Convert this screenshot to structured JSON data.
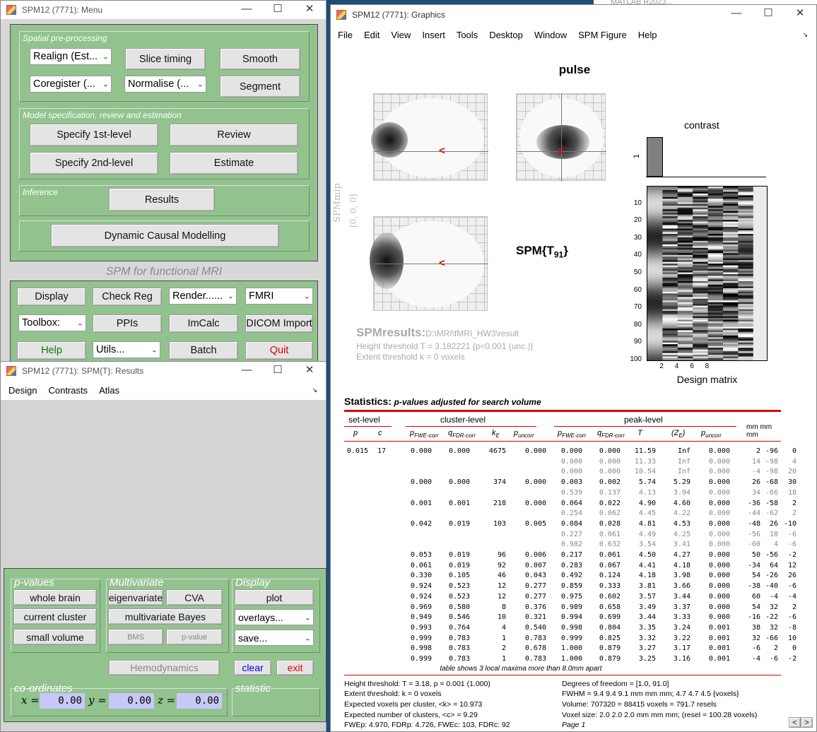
{
  "menu_window": {
    "title": "SPM12 (7771): Menu",
    "spatial_label": "Spatial pre-processing",
    "realign": "Realign (Est...",
    "slice_timing": "Slice timing",
    "smooth": "Smooth",
    "coregister": "Coregister (...",
    "normalise": "Normalise (...",
    "segment": "Segment",
    "model_label": "Model specification, review and estimation",
    "specify_1st": "Specify 1st-level",
    "review": "Review",
    "specify_2nd": "Specify 2nd-level",
    "estimate": "Estimate",
    "inference_label": "Inference",
    "results": "Results",
    "dcm": "Dynamic Causal Modelling",
    "banner": "SPM for functional MRI",
    "display": "Display",
    "check_reg": "Check Reg",
    "render": "Render......",
    "modality": "FMRI",
    "toolbox": "Toolbox:",
    "ppis": "PPIs",
    "imcalc": "ImCalc",
    "dicom_import": "DICOM Import",
    "help": "Help",
    "utils": "Utils...",
    "batch": "Batch",
    "quit": "Quit"
  },
  "behind_window": {
    "title": "MATLAB R2023..."
  },
  "results_window": {
    "title": "SPM12 (7771): SPM{T}: Results",
    "menus": [
      "Design",
      "Contrasts",
      "Atlas"
    ],
    "pvalues_label": "p-values",
    "whole_brain": "whole brain",
    "current_cluster": "current cluster",
    "small_volume": "small volume",
    "multivariate_label": "Multivariate",
    "eigenvariate": "eigenvariate",
    "cva": "CVA",
    "multivariate_bayes": "multivariate Bayes",
    "bms": "BMS",
    "p_value": "p-value",
    "display_label": "Display",
    "plot": "plot",
    "overlays": "overlays...",
    "save": "save...",
    "hemodynamics": "Hemodynamics",
    "clear": "clear",
    "exit": "exit",
    "coords_label": "co-ordinates",
    "statistic_label": "statistic",
    "x_label": "x =",
    "y_label": "y =",
    "z_label": "z =",
    "x": "0.00",
    "y": "0.00",
    "z": "0.00"
  },
  "graphics_window": {
    "title": "SPM12 (7771): Graphics",
    "menus": [
      "File",
      "Edit",
      "View",
      "Insert",
      "Tools",
      "Desktop",
      "Window",
      "SPM Figure",
      "Help"
    ],
    "contrast_name": "pulse",
    "mip_label": "SPMmip",
    "mip_coords": "[0, 0, 0]",
    "stat_label": "SPM{T",
    "stat_df": "91",
    "contrast_title": "contrast",
    "contrast_tick": "1",
    "design_label": "Design matrix",
    "design_yticks": [
      "10",
      "20",
      "30",
      "40",
      "50",
      "60",
      "70",
      "80",
      "90",
      "100"
    ],
    "design_xticks": [
      "2",
      "4",
      "6",
      "8"
    ],
    "spmresults_label": "SPMresults:",
    "spmresults_path": "D:\\MRI\\fMRI_HW3\\result",
    "height_threshold": "Height threshold T = 3.182221  {p<0.001 (unc.)}",
    "extent_threshold": "Extent threshold k = 0 voxels",
    "stats_title": "Statistics:",
    "stats_subtitle": "p-values adjusted for search volume",
    "hdr_set": "set-level",
    "hdr_cluster": "cluster-level",
    "hdr_peak": "peak-level",
    "hdr_mm": "mm mm mm",
    "hdr_cols": {
      "p": "p",
      "c": "c",
      "pfwe": "p",
      "pfwe_sub": "FWE-corr",
      "qfdr": "q",
      "qfdr_sub": "FDR-corr",
      "ke": "k",
      "ke_sub": "E",
      "punc": "p",
      "punc_sub": "uncorr",
      "pfwe2": "p",
      "pfwe2_sub": "FWE-corr",
      "qfdr2": "q",
      "qfdr2_sub": "FDR-corr",
      "t": "T",
      "ze": "(Z",
      "ze_sub": "E",
      "ze_close": ")",
      "punc2": "p",
      "punc2_sub": "uncorr"
    },
    "rows": [
      {
        "f": 0,
        "sp": "0.015",
        "sc": "17",
        "cp": "0.000",
        "cq": "0.000",
        "ck": "4675",
        "cu": "0.000",
        "pp": "0.000",
        "pq": "0.000",
        "t": "11.59",
        "z": "Inf",
        "pu": "0.000",
        "x": "2",
        "y": "-96",
        "zz": "0"
      },
      {
        "f": 1,
        "sp": "",
        "sc": "",
        "cp": "",
        "cq": "",
        "ck": "",
        "cu": "",
        "pp": "0.000",
        "pq": "0.000",
        "t": "11.33",
        "z": "Inf",
        "pu": "0.000",
        "x": "14",
        "y": "-98",
        "zz": "4"
      },
      {
        "f": 1,
        "sp": "",
        "sc": "",
        "cp": "",
        "cq": "",
        "ck": "",
        "cu": "",
        "pp": "0.000",
        "pq": "0.000",
        "t": "10.54",
        "z": "Inf",
        "pu": "0.000",
        "x": "-4",
        "y": "-98",
        "zz": "20"
      },
      {
        "f": 0,
        "sp": "",
        "sc": "",
        "cp": "0.000",
        "cq": "0.000",
        "ck": "374",
        "cu": "0.000",
        "pp": "0.003",
        "pq": "0.002",
        "t": "5.74",
        "z": "5.29",
        "pu": "0.000",
        "x": "26",
        "y": "-68",
        "zz": "30"
      },
      {
        "f": 1,
        "sp": "",
        "sc": "",
        "cp": "",
        "cq": "",
        "ck": "",
        "cu": "",
        "pp": "0.539",
        "pq": "0.137",
        "t": "4.13",
        "z": "3.94",
        "pu": "0.000",
        "x": "34",
        "y": "-66",
        "zz": "18"
      },
      {
        "f": 0,
        "sp": "",
        "sc": "",
        "cp": "0.001",
        "cq": "0.001",
        "ck": "218",
        "cu": "0.000",
        "pp": "0.064",
        "pq": "0.022",
        "t": "4.90",
        "z": "4.60",
        "pu": "0.000",
        "x": "-36",
        "y": "-58",
        "zz": "2"
      },
      {
        "f": 1,
        "sp": "",
        "sc": "",
        "cp": "",
        "cq": "",
        "ck": "",
        "cu": "",
        "pp": "0.254",
        "pq": "0.062",
        "t": "4.45",
        "z": "4.22",
        "pu": "0.000",
        "x": "-44",
        "y": "-62",
        "zz": "2"
      },
      {
        "f": 0,
        "sp": "",
        "sc": "",
        "cp": "0.042",
        "cq": "0.019",
        "ck": "103",
        "cu": "0.005",
        "pp": "0.084",
        "pq": "0.028",
        "t": "4.81",
        "z": "4.53",
        "pu": "0.000",
        "x": "-48",
        "y": "26",
        "zz": "-10"
      },
      {
        "f": 1,
        "sp": "",
        "sc": "",
        "cp": "",
        "cq": "",
        "ck": "",
        "cu": "",
        "pp": "0.227",
        "pq": "0.061",
        "t": "4.49",
        "z": "4.25",
        "pu": "0.000",
        "x": "-56",
        "y": "18",
        "zz": "-6"
      },
      {
        "f": 1,
        "sp": "",
        "sc": "",
        "cp": "",
        "cq": "",
        "ck": "",
        "cu": "",
        "pp": "0.982",
        "pq": "0.632",
        "t": "3.54",
        "z": "3.41",
        "pu": "0.000",
        "x": "-60",
        "y": "4",
        "zz": "-6"
      },
      {
        "f": 0,
        "sp": "",
        "sc": "",
        "cp": "0.053",
        "cq": "0.019",
        "ck": "96",
        "cu": "0.006",
        "pp": "0.217",
        "pq": "0.061",
        "t": "4.50",
        "z": "4.27",
        "pu": "0.000",
        "x": "50",
        "y": "-56",
        "zz": "-2"
      },
      {
        "f": 0,
        "sp": "",
        "sc": "",
        "cp": "0.061",
        "cq": "0.019",
        "ck": "92",
        "cu": "0.007",
        "pp": "0.283",
        "pq": "0.067",
        "t": "4.41",
        "z": "4.18",
        "pu": "0.000",
        "x": "-34",
        "y": "64",
        "zz": "12"
      },
      {
        "f": 0,
        "sp": "",
        "sc": "",
        "cp": "0.330",
        "cq": "0.105",
        "ck": "46",
        "cu": "0.043",
        "pp": "0.492",
        "pq": "0.124",
        "t": "4.18",
        "z": "3.98",
        "pu": "0.000",
        "x": "54",
        "y": "-26",
        "zz": "26"
      },
      {
        "f": 0,
        "sp": "",
        "sc": "",
        "cp": "0.924",
        "cq": "0.523",
        "ck": "12",
        "cu": "0.277",
        "pp": "0.859",
        "pq": "0.333",
        "t": "3.81",
        "z": "3.66",
        "pu": "0.000",
        "x": "-38",
        "y": "-40",
        "zz": "-6"
      },
      {
        "f": 0,
        "sp": "",
        "sc": "",
        "cp": "0.924",
        "cq": "0.523",
        "ck": "12",
        "cu": "0.277",
        "pp": "0.975",
        "pq": "0.602",
        "t": "3.57",
        "z": "3.44",
        "pu": "0.000",
        "x": "60",
        "y": "-4",
        "zz": "-4"
      },
      {
        "f": 0,
        "sp": "",
        "sc": "",
        "cp": "0.969",
        "cq": "0.580",
        "ck": "8",
        "cu": "0.376",
        "pp": "0.989",
        "pq": "0.658",
        "t": "3.49",
        "z": "3.37",
        "pu": "0.000",
        "x": "54",
        "y": "32",
        "zz": "2"
      },
      {
        "f": 0,
        "sp": "",
        "sc": "",
        "cp": "0.949",
        "cq": "0.546",
        "ck": "10",
        "cu": "0.321",
        "pp": "0.994",
        "pq": "0.699",
        "t": "3.44",
        "z": "3.33",
        "pu": "0.000",
        "x": "-16",
        "y": "-22",
        "zz": "-6"
      },
      {
        "f": 0,
        "sp": "",
        "sc": "",
        "cp": "0.993",
        "cq": "0.764",
        "ck": "4",
        "cu": "0.540",
        "pp": "0.998",
        "pq": "0.804",
        "t": "3.35",
        "z": "3.24",
        "pu": "0.001",
        "x": "38",
        "y": "32",
        "zz": "-8"
      },
      {
        "f": 0,
        "sp": "",
        "sc": "",
        "cp": "0.999",
        "cq": "0.783",
        "ck": "1",
        "cu": "0.783",
        "pp": "0.999",
        "pq": "0.825",
        "t": "3.32",
        "z": "3.22",
        "pu": "0.001",
        "x": "32",
        "y": "-66",
        "zz": "10"
      },
      {
        "f": 0,
        "sp": "",
        "sc": "",
        "cp": "0.998",
        "cq": "0.783",
        "ck": "2",
        "cu": "0.678",
        "pp": "1.000",
        "pq": "0.879",
        "t": "3.27",
        "z": "3.17",
        "pu": "0.001",
        "x": "-6",
        "y": "2",
        "zz": "0"
      },
      {
        "f": 0,
        "sp": "",
        "sc": "",
        "cp": "0.999",
        "cq": "0.783",
        "ck": "1",
        "cu": "0.783",
        "pp": "1.000",
        "pq": "0.879",
        "t": "3.25",
        "z": "3.16",
        "pu": "0.001",
        "x": "-4",
        "y": "-6",
        "zz": "-2"
      }
    ],
    "table_note": "table shows 3 local maxima more than 8.0mm apart",
    "footer_left": [
      "Height threshold: T = 3.18, p = 0.001 (1.000)",
      "Extent threshold: k = 0 voxels",
      "Expected voxels per cluster, <k> = 10.973",
      "Expected number of clusters, <c> = 9.29",
      "FWEp: 4.970, FDRp: 4.726, FWEc: 103, FDRc: 92"
    ],
    "footer_right": [
      "Degrees of freedom = [1.0, 91.0]",
      "FWHM = 9.4 9.4 9.1 mm mm mm; 4.7 4.7 4.5 {voxels}",
      "Volume: 707320 = 88415 voxels = 791.7 resels",
      "Voxel size: 2.0 2.0 2.0 mm mm mm; (resel = 100.28 voxels)",
      "Page 1"
    ],
    "page_prev": "<",
    "page_next": ">"
  },
  "colors": {
    "panel_green": "#92c38e",
    "table_rule_red": "#e00000",
    "help_green": "#008000",
    "quit_red": "#e00000",
    "clear_blue": "#0000ee",
    "coord_field": "#c8c8f8"
  }
}
